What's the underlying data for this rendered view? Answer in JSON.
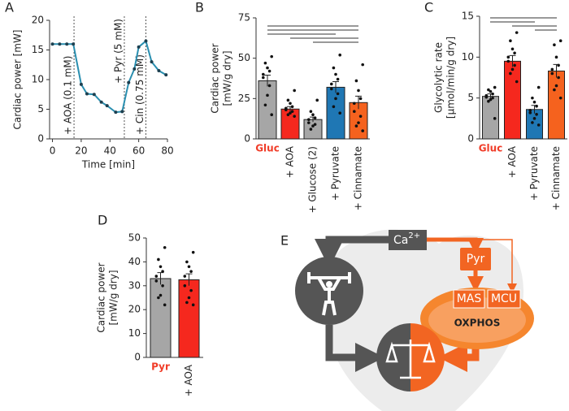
{
  "chart_data": [
    {
      "type": "line",
      "panel": "A",
      "ylabel": [
        "Cardiac power [mW]"
      ],
      "xlabel": "Time [min]",
      "x": [
        0,
        5,
        10,
        14.5,
        20,
        24,
        29,
        34,
        38,
        44,
        48.5,
        53,
        57,
        60,
        65,
        69,
        74,
        79
      ],
      "values": [
        16,
        16,
        16,
        16,
        9.2,
        7.6,
        7.5,
        6.2,
        5.6,
        4.5,
        4.6,
        9.5,
        11.8,
        15.5,
        16.5,
        13,
        11.5,
        10.8
      ],
      "color": "#2a8fb0",
      "marker_color": "#1d3f4f",
      "xlim": [
        -2,
        80
      ],
      "xticks": [
        0,
        20,
        40,
        60,
        80
      ],
      "ylim": [
        0,
        20
      ],
      "yticks": [
        0,
        5,
        10,
        15,
        20
      ],
      "annotations": [
        {
          "x": 15,
          "text": "+ AOA (0.1 mM)"
        },
        {
          "x": 50,
          "text": "+ Pyr (5 mM)"
        },
        {
          "x": 65,
          "text": "+ Cin (0.75 mM)"
        }
      ]
    },
    {
      "type": "bar",
      "panel": "B",
      "ylabel": [
        "Cardiac power",
        "[mW/g dry]"
      ],
      "categories": [
        "Gluc",
        "+ AOA",
        "+ Glucose (2)",
        "+ Pyruvate",
        "+ Cinnamate"
      ],
      "values": [
        36,
        18.5,
        12,
        32,
        22.5
      ],
      "errors": [
        3.5,
        1.5,
        1.5,
        3.5,
        4
      ],
      "colors": [
        "#a6a6a6",
        "#f5281e",
        "#a6a6a6",
        "#1f77b4",
        "#f5621e"
      ],
      "points": [
        [
          51,
          47,
          44,
          42,
          40,
          38,
          33,
          27,
          21,
          15
        ],
        [
          30,
          24,
          22,
          20,
          19,
          18,
          17,
          16,
          15,
          14
        ],
        [
          24,
          17,
          15,
          13,
          12,
          10,
          9,
          8,
          6
        ],
        [
          52,
          44,
          40,
          37,
          34,
          31,
          28,
          25,
          20,
          16
        ],
        [
          46,
          36,
          30,
          25,
          22,
          17,
          14,
          10,
          8,
          5
        ]
      ],
      "ylim": [
        0,
        75
      ],
      "yticks": [
        0,
        25,
        50,
        75
      ]
    },
    {
      "type": "bar",
      "panel": "C",
      "ylabel": [
        "Glycolytic rate",
        "[µmol/min/g dry]"
      ],
      "categories": [
        "Gluc",
        "+ AOA",
        "+ Pyruvate",
        "+ Cinnamate"
      ],
      "values": [
        5.2,
        9.5,
        3.6,
        8.3
      ],
      "errors": [
        0.3,
        0.7,
        0.5,
        0.8
      ],
      "colors": [
        "#a6a6a6",
        "#f5281e",
        "#1f77b4",
        "#f5621e"
      ],
      "points": [
        [
          6.3,
          6,
          5.8,
          5.5,
          5.3,
          5.1,
          5,
          4.8,
          4.6,
          2.5
        ],
        [
          13,
          12,
          11,
          10.5,
          10,
          9.5,
          9,
          8.5,
          8,
          7
        ],
        [
          6.3,
          5,
          4.5,
          4,
          3.5,
          3.2,
          3,
          2.5,
          2,
          1.7
        ],
        [
          12,
          11.5,
          10,
          9,
          8.5,
          8,
          7.5,
          6.5,
          6,
          5
        ]
      ],
      "ylim": [
        0,
        15
      ],
      "yticks": [
        0,
        5,
        10,
        15
      ]
    },
    {
      "type": "bar",
      "panel": "D",
      "ylabel": [
        "Cardiac power",
        "[mW/g dry]"
      ],
      "categories": [
        "Pyr",
        "+ AOA"
      ],
      "values": [
        33,
        32.5
      ],
      "errors": [
        2.5,
        2.5
      ],
      "colors": [
        "#a6a6a6",
        "#f5281e"
      ],
      "points": [
        [
          46,
          41,
          38,
          36,
          34,
          32,
          30,
          26,
          25,
          22
        ],
        [
          44,
          40,
          38,
          36,
          34,
          30,
          28,
          25,
          23,
          22
        ]
      ],
      "ylim": [
        0,
        50
      ],
      "yticks": [
        0,
        10,
        20,
        30,
        40,
        50
      ]
    }
  ],
  "diagram": {
    "panel": "E",
    "calcium": "Ca",
    "calcium_charge": "2+",
    "pyruvate": "Pyr",
    "mas": "MAS",
    "mcu": "MCU",
    "oxphos": "OXPHOS"
  }
}
